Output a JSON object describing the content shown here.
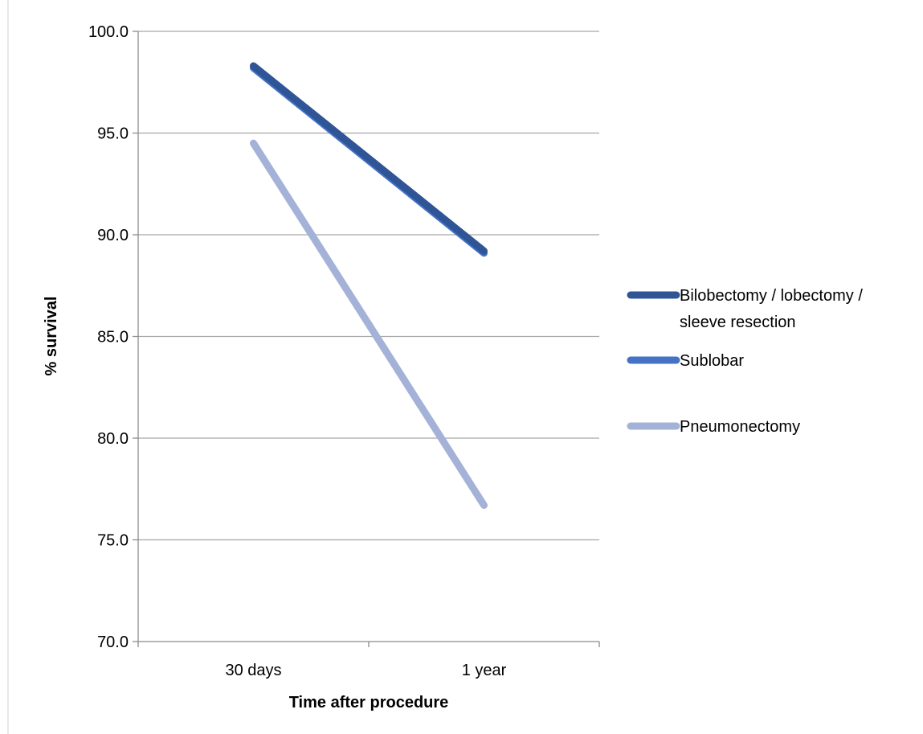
{
  "chart_data": {
    "type": "line",
    "title": "",
    "xlabel": "Time after procedure",
    "ylabel": "% survival",
    "categories": [
      "30 days",
      "1 year"
    ],
    "ylim": [
      70.0,
      100.0
    ],
    "yticks": [
      "70.0",
      "75.0",
      "80.0",
      "85.0",
      "90.0",
      "95.0",
      "100.0"
    ],
    "grid": "horizontal",
    "legend": "right",
    "series": [
      {
        "name_lines": [
          "Bilobectomy / lobectomy /",
          "sleeve resection"
        ],
        "values": [
          98.3,
          89.2
        ],
        "color": "#2f5597"
      },
      {
        "name_lines": [
          "Sublobar"
        ],
        "values": [
          98.2,
          89.1
        ],
        "color": "#4472c4"
      },
      {
        "name_lines": [
          "Pneumonectomy"
        ],
        "values": [
          94.5,
          76.7
        ],
        "color": "#a4b2d8"
      }
    ]
  }
}
